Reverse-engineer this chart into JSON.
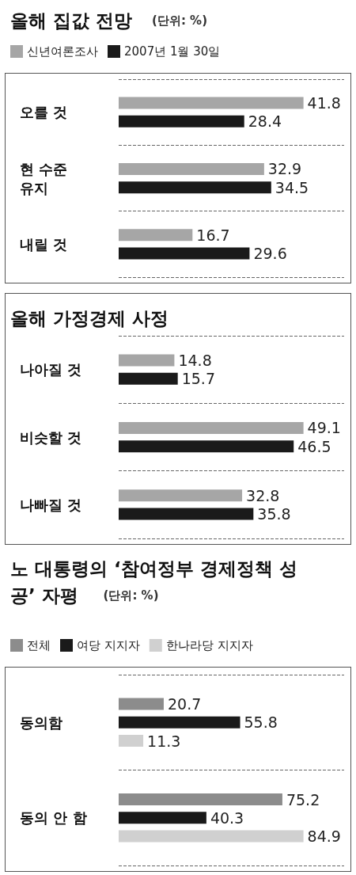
{
  "chart_data": [
    {
      "type": "bar",
      "orientation": "horizontal",
      "title": "올해 집값 전망",
      "subtitle": "(단위: %)",
      "categories": [
        "오를 것",
        "현 수준 유지",
        "내릴 것"
      ],
      "series": [
        {
          "name": "신년여론조사",
          "color": "#a6a6a6",
          "values": [
            41.8,
            32.9,
            16.7
          ]
        },
        {
          "name": "2007년 1월 30일",
          "color": "#1a1a1a",
          "values": [
            28.4,
            34.5,
            29.6
          ]
        }
      ],
      "data_labels": true,
      "legend": "top left",
      "grid": "y"
    },
    {
      "type": "bar",
      "orientation": "horizontal",
      "title": "올해 가정경제 사정",
      "categories": [
        "나아질 것",
        "비슷할 것",
        "나빠질 것"
      ],
      "series": [
        {
          "color": "#a6a6a6",
          "values": [
            14.8,
            49.1,
            32.8
          ]
        },
        {
          "color": "#1a1a1a",
          "values": [
            15.7,
            46.5,
            35.8
          ]
        }
      ],
      "data_labels": true,
      "grid": "y"
    },
    {
      "type": "bar",
      "orientation": "horizontal",
      "title": "노 대통령의 ‘참여정부 경제정책 성공’ 자평",
      "subtitle": "(단위: %)",
      "categories": [
        "동의함",
        "동의 안 함"
      ],
      "series": [
        {
          "name": "전체",
          "color": "#8c8c8c",
          "values": [
            20.7,
            75.2
          ]
        },
        {
          "name": "여당 지지자",
          "color": "#1a1a1a",
          "values": [
            55.8,
            40.3
          ]
        },
        {
          "name": "한나라당 지지자",
          "color": "#d0d0d0",
          "values": [
            11.3,
            84.9
          ]
        }
      ],
      "data_labels": true,
      "legend": "top left",
      "grid": "y"
    }
  ]
}
